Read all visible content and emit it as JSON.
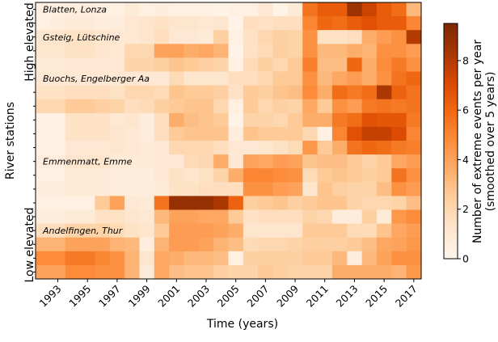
{
  "chart_data": {
    "type": "heatmap",
    "xlabel": "Time (years)",
    "ylabel": "River stations",
    "x_years": [
      1992,
      1993,
      1994,
      1995,
      1996,
      1997,
      1998,
      1999,
      2000,
      2001,
      2002,
      2003,
      2004,
      2005,
      2006,
      2007,
      2008,
      2009,
      2010,
      2011,
      2012,
      2013,
      2014,
      2015,
      2016,
      2017
    ],
    "x_tick_labels": [
      "1993",
      "1995",
      "1997",
      "1999",
      "2001",
      "2003",
      "2005",
      "2007",
      "2009",
      "2011",
      "2013",
      "2015",
      "2017"
    ],
    "y_group_labels": [
      "High elevated",
      "Low elevated"
    ],
    "station_labels": [
      "Blatten, Lonza",
      "Gsteig, Lütschine",
      "Buochs, Engelberger Aa",
      "Emmenmatt, Emme",
      "Andelfingen, Thur"
    ],
    "station_label_rows": [
      0,
      2,
      5,
      11,
      16
    ],
    "n_rows": 20,
    "colorbar": {
      "label_line1": "Number of extreme events per year",
      "label_line2": "(smoothed over 5 years)",
      "ticks": [
        "0",
        "2",
        "4",
        "6",
        "8"
      ],
      "range": [
        0,
        9.5
      ],
      "colors": [
        "#fff5eb",
        "#fee6ce",
        "#fdd0a2",
        "#fdae6b",
        "#fd8d3c",
        "#f16913",
        "#d94801",
        "#a63603",
        "#7f2704"
      ]
    },
    "values": [
      [
        0.4,
        0.4,
        0.6,
        0.6,
        0.4,
        0.4,
        0.8,
        0.4,
        0.6,
        0.4,
        0.4,
        0.4,
        0.2,
        0.4,
        0.4,
        1.0,
        0.2,
        0.8,
        5.6,
        6.4,
        6.4,
        8.6,
        7.4,
        6.4,
        5.8,
        3.2
      ],
      [
        0.4,
        0.6,
        0.8,
        0.8,
        0.6,
        0.6,
        1.0,
        1.2,
        1.4,
        1.2,
        1.2,
        1.0,
        1.2,
        0.2,
        1.6,
        1.4,
        1.6,
        1.6,
        5.0,
        6.0,
        5.8,
        6.4,
        6.8,
        6.4,
        6.4,
        5.0
      ],
      [
        1.2,
        1.2,
        1.4,
        1.4,
        1.2,
        1.0,
        1.0,
        1.2,
        1.6,
        1.0,
        1.0,
        0.8,
        2.4,
        0.4,
        1.4,
        2.0,
        2.4,
        2.2,
        4.6,
        1.4,
        1.4,
        1.6,
        3.6,
        4.2,
        4.6,
        8.0
      ],
      [
        1.2,
        1.2,
        1.4,
        1.4,
        1.2,
        1.0,
        2.0,
        2.0,
        4.0,
        4.0,
        3.6,
        3.8,
        3.4,
        0.2,
        1.4,
        1.8,
        2.4,
        2.2,
        4.6,
        3.2,
        3.2,
        3.6,
        3.4,
        4.6,
        4.6,
        4.2
      ],
      [
        0.8,
        0.8,
        1.0,
        1.0,
        1.0,
        1.0,
        2.2,
        2.2,
        2.4,
        2.8,
        2.6,
        2.4,
        2.2,
        0.4,
        1.8,
        2.4,
        2.0,
        2.6,
        5.2,
        3.0,
        3.0,
        6.0,
        3.6,
        4.8,
        5.4,
        4.6
      ],
      [
        1.0,
        1.0,
        1.0,
        1.0,
        1.0,
        1.0,
        1.0,
        1.0,
        1.0,
        1.8,
        1.2,
        1.2,
        1.2,
        1.6,
        1.6,
        2.0,
        2.6,
        2.6,
        4.6,
        3.2,
        3.8,
        4.2,
        3.6,
        4.6,
        5.6,
        6.0
      ],
      [
        1.4,
        1.4,
        1.6,
        1.6,
        1.6,
        1.4,
        2.0,
        2.0,
        1.8,
        2.8,
        2.6,
        2.6,
        2.4,
        1.4,
        2.6,
        2.4,
        2.8,
        3.0,
        4.8,
        3.6,
        5.8,
        5.4,
        5.8,
        8.2,
        6.2,
        5.6
      ],
      [
        2.0,
        2.0,
        2.6,
        2.6,
        2.4,
        2.2,
        1.6,
        1.8,
        2.4,
        2.6,
        2.8,
        2.8,
        2.0,
        0.4,
        2.6,
        2.0,
        2.4,
        2.2,
        3.8,
        2.6,
        4.6,
        4.2,
        5.4,
        5.6,
        5.4,
        5.6
      ],
      [
        0.4,
        0.4,
        1.4,
        1.4,
        1.4,
        1.0,
        1.2,
        0.6,
        1.6,
        3.6,
        3.0,
        2.8,
        2.6,
        0.2,
        2.2,
        2.2,
        2.0,
        2.6,
        3.6,
        3.6,
        5.4,
        5.8,
        6.8,
        6.6,
        6.6,
        5.4
      ],
      [
        0.4,
        0.4,
        1.4,
        1.4,
        1.4,
        1.2,
        1.0,
        0.6,
        1.6,
        2.6,
        2.8,
        2.8,
        2.8,
        0.6,
        2.8,
        2.6,
        2.6,
        2.6,
        2.0,
        0.4,
        5.0,
        6.8,
        7.6,
        7.6,
        7.0,
        5.0
      ],
      [
        0.4,
        0.4,
        1.0,
        1.0,
        1.0,
        1.2,
        1.0,
        0.8,
        1.0,
        2.0,
        2.0,
        2.0,
        1.6,
        1.0,
        1.0,
        1.2,
        1.4,
        1.8,
        4.4,
        2.6,
        3.6,
        5.6,
        6.0,
        5.8,
        5.4,
        5.2
      ],
      [
        0.6,
        0.6,
        1.2,
        1.2,
        1.2,
        0.8,
        0.8,
        0.8,
        1.0,
        1.0,
        1.8,
        2.0,
        3.6,
        1.0,
        4.0,
        3.8,
        4.2,
        4.0,
        2.8,
        3.0,
        3.0,
        2.6,
        2.2,
        2.6,
        3.8,
        4.2
      ],
      [
        0.4,
        0.4,
        0.8,
        0.8,
        0.8,
        0.6,
        0.6,
        0.6,
        1.0,
        1.4,
        1.2,
        1.4,
        2.2,
        3.6,
        5.0,
        5.0,
        4.8,
        4.6,
        1.8,
        2.6,
        2.8,
        2.6,
        2.4,
        2.6,
        5.6,
        4.6
      ],
      [
        0.6,
        0.6,
        0.8,
        0.8,
        0.8,
        0.6,
        0.6,
        0.6,
        0.8,
        1.4,
        1.4,
        1.6,
        1.6,
        1.6,
        4.6,
        4.6,
        4.2,
        4.0,
        1.2,
        2.8,
        2.4,
        2.2,
        2.2,
        3.0,
        4.6,
        4.2
      ],
      [
        0.4,
        0.4,
        0.4,
        0.4,
        2.6,
        4.0,
        1.0,
        0.8,
        5.6,
        8.8,
        8.8,
        8.8,
        8.2,
        6.2,
        2.4,
        2.6,
        2.8,
        2.4,
        2.6,
        2.8,
        2.8,
        2.2,
        2.0,
        2.0,
        2.2,
        3.0
      ],
      [
        0.6,
        0.6,
        0.8,
        0.8,
        1.4,
        1.4,
        1.2,
        1.0,
        3.2,
        4.0,
        4.0,
        3.8,
        3.8,
        2.6,
        1.4,
        1.6,
        1.6,
        1.6,
        2.2,
        2.0,
        0.6,
        0.6,
        2.4,
        0.8,
        4.4,
        4.8
      ],
      [
        1.6,
        1.6,
        2.2,
        2.2,
        2.2,
        1.8,
        1.4,
        1.2,
        2.6,
        4.2,
        4.2,
        4.2,
        4.0,
        3.6,
        1.2,
        1.2,
        1.2,
        1.2,
        2.6,
        2.6,
        2.6,
        1.8,
        1.8,
        2.8,
        3.8,
        4.2
      ],
      [
        3.4,
        3.4,
        4.0,
        4.0,
        4.0,
        3.4,
        3.2,
        0.6,
        3.4,
        4.2,
        4.2,
        4.0,
        3.4,
        3.0,
        1.8,
        2.0,
        2.0,
        2.2,
        2.4,
        2.4,
        2.4,
        2.6,
        3.0,
        3.8,
        4.0,
        4.4
      ],
      [
        4.8,
        4.8,
        5.4,
        5.4,
        5.0,
        4.6,
        3.4,
        1.2,
        3.8,
        3.6,
        3.2,
        3.2,
        3.0,
        0.4,
        2.4,
        2.4,
        2.4,
        2.4,
        2.6,
        2.6,
        3.2,
        0.6,
        3.2,
        4.0,
        4.6,
        4.6
      ],
      [
        4.0,
        4.0,
        4.8,
        4.8,
        4.6,
        4.6,
        3.4,
        0.8,
        3.8,
        3.0,
        2.8,
        2.8,
        2.4,
        2.2,
        2.2,
        2.6,
        2.4,
        2.2,
        2.2,
        2.2,
        3.6,
        3.6,
        3.6,
        3.6,
        3.4,
        4.4
      ]
    ]
  }
}
